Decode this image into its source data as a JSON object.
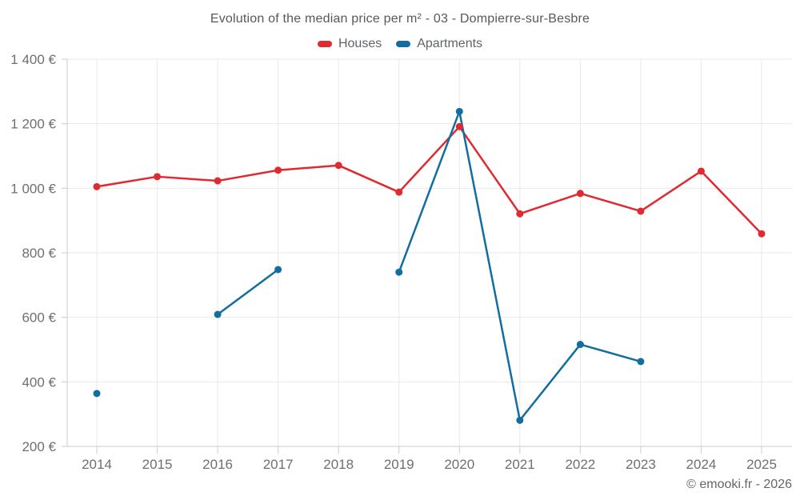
{
  "chart_data": {
    "type": "line",
    "title": "Evolution of the median price per m² - 03 - Dompierre-sur-Besbre",
    "xlabel": "",
    "ylabel": "",
    "categories": [
      "2014",
      "2015",
      "2016",
      "2017",
      "2018",
      "2019",
      "2020",
      "2021",
      "2022",
      "2023",
      "2024",
      "2025"
    ],
    "series": [
      {
        "name": "Houses",
        "color": "#e02a30",
        "values": [
          1005,
          1036,
          1023,
          1056,
          1071,
          988,
          1191,
          921,
          984,
          929,
          1053,
          859
        ]
      },
      {
        "name": "Apartments",
        "color": "#116e9f",
        "values": [
          364,
          null,
          609,
          748,
          null,
          740,
          1238,
          281,
          516,
          463,
          null,
          null
        ]
      }
    ],
    "ylim": [
      200,
      1400
    ],
    "y_ticks": [
      {
        "value": 200,
        "label": "200 €"
      },
      {
        "value": 400,
        "label": "400 €"
      },
      {
        "value": 600,
        "label": "600 €"
      },
      {
        "value": 800,
        "label": "800 €"
      },
      {
        "value": 1000,
        "label": "1 000 €"
      },
      {
        "value": 1200,
        "label": "1 200 €"
      },
      {
        "value": 1400,
        "label": "1 400 €"
      }
    ],
    "grid": true,
    "legend_position": "top"
  },
  "attribution": {
    "text": "© emooki.fr - 2026"
  },
  "colors": {
    "background": "#ffffff",
    "grid_line": "#e9e9e9",
    "axis_line": "#cccccc",
    "tick_mark": "#cccccc",
    "tick_text": "#6f6f6f",
    "title_text": "#58585a",
    "legend_text": "#5f6368",
    "attribution_text": "#666666"
  }
}
